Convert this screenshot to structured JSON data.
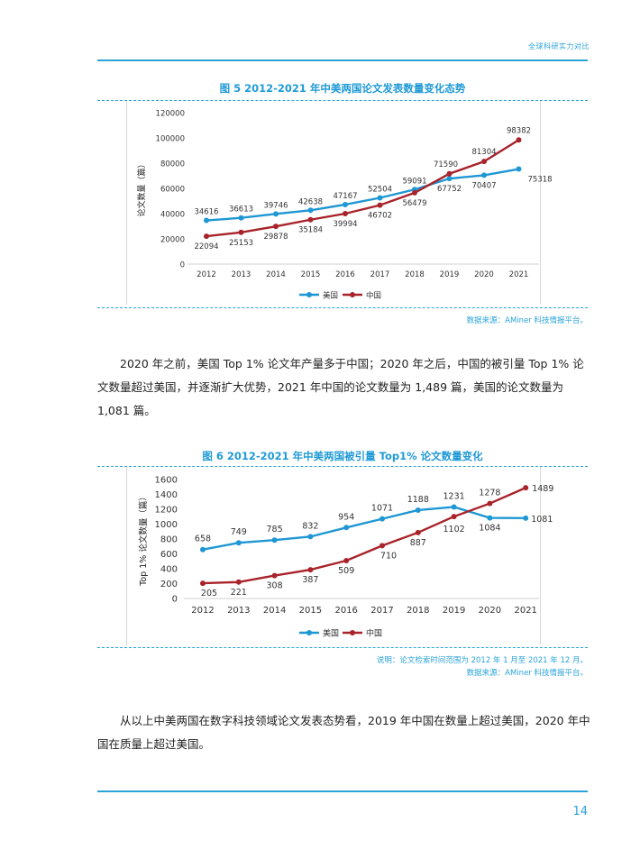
{
  "header": {
    "title": "全球科研实力对比"
  },
  "figure5": {
    "title": "图 5 2012-2021 年中美两国论文发表数量变化态势",
    "source": "数据来源：AMiner 科技情报平台。",
    "chart_data": {
      "type": "line",
      "categories": [
        "2012",
        "2013",
        "2014",
        "2015",
        "2016",
        "2017",
        "2018",
        "2019",
        "2020",
        "2021"
      ],
      "ylabel": "论文数量（篇）",
      "ylim": [
        0,
        120000
      ],
      "yticks": [
        "0",
        "20000",
        "40000",
        "60000",
        "80000",
        "100000",
        "120000"
      ],
      "grid": false,
      "legend": "bottom-center",
      "series": [
        {
          "name": "美国",
          "color": "#1f97d4",
          "values": [
            34616,
            36613,
            39746,
            42638,
            47167,
            52504,
            59091,
            67752,
            70407,
            75318
          ],
          "labels": [
            "34616",
            "36613",
            "39746",
            "42638",
            "47167",
            "52504",
            "59091",
            "67752",
            "70407",
            "75318"
          ]
        },
        {
          "name": "中国",
          "color": "#a8232a",
          "values": [
            22094,
            25153,
            29878,
            35184,
            39994,
            46702,
            56479,
            71590,
            81304,
            98382
          ],
          "labels": [
            "22094",
            "25153",
            "29878",
            "35184",
            "39994",
            "46702",
            "56479",
            "71590",
            "81304",
            "98382"
          ]
        }
      ]
    }
  },
  "paragraph1": "2020 年之前，美国 Top 1% 论文年产量多于中国；2020 年之后，中国的被引量 Top 1% 论文数量超过美国，并逐渐扩大优势，2021 年中国的论文数量为 1,489 篇，美国的论文数量为 1,081 篇。",
  "figure6": {
    "title": "图 6 2012-2021 年中美两国被引量 Top1% 论文数量变化",
    "note": "说明：论文检索时间范围为 2012 年 1 月至 2021 年 12 月。",
    "source": "数据来源：AMiner 科技情报平台。",
    "chart_data": {
      "type": "line",
      "categories": [
        "2012",
        "2013",
        "2014",
        "2015",
        "2016",
        "2017",
        "2018",
        "2019",
        "2020",
        "2021"
      ],
      "ylabel": "Top 1% 论文数量（篇）",
      "ylim": [
        0,
        1600
      ],
      "yticks": [
        "0",
        "200",
        "400",
        "600",
        "800",
        "1000",
        "1200",
        "1400",
        "1600"
      ],
      "grid": false,
      "legend": "bottom-center",
      "series": [
        {
          "name": "美国",
          "color": "#1f97d4",
          "values": [
            658,
            749,
            785,
            832,
            954,
            1071,
            1188,
            1231,
            1084,
            1081
          ],
          "labels": [
            "658",
            "749",
            "785",
            "832",
            "954",
            "1071",
            "1188",
            "1231",
            "1084",
            "1081"
          ]
        },
        {
          "name": "中国",
          "color": "#a8232a",
          "values": [
            205,
            221,
            308,
            387,
            509,
            710,
            887,
            1102,
            1278,
            1489
          ],
          "labels": [
            "205",
            "221",
            "308",
            "387",
            "509",
            "710",
            "887",
            "1102",
            "1278",
            "1489"
          ]
        }
      ]
    }
  },
  "paragraph2": "从以上中美两国在数字科技领域论文发表态势看，2019 年中国在数量上超过美国，2020 年中国在质量上超过美国。",
  "page_number": "14"
}
